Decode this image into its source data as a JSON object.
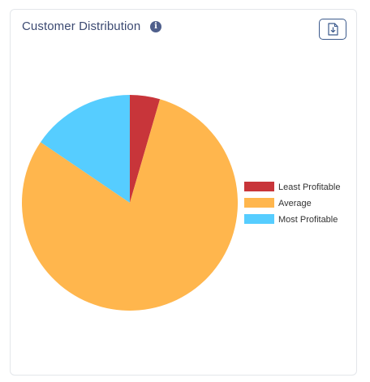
{
  "header": {
    "title": "Customer Distribution",
    "info_icon": "info-icon",
    "download_icon": "download-icon"
  },
  "chart_data": {
    "type": "pie",
    "title": "",
    "categories": [
      "Least Profitable",
      "Average",
      "Most Profitable"
    ],
    "values": [
      4.5,
      80.0,
      15.5
    ],
    "colors": [
      "#c8353a",
      "#ffb64d",
      "#56cdff"
    ],
    "start_angle_deg": 0,
    "direction": "clockwise",
    "legend_position": "right"
  }
}
